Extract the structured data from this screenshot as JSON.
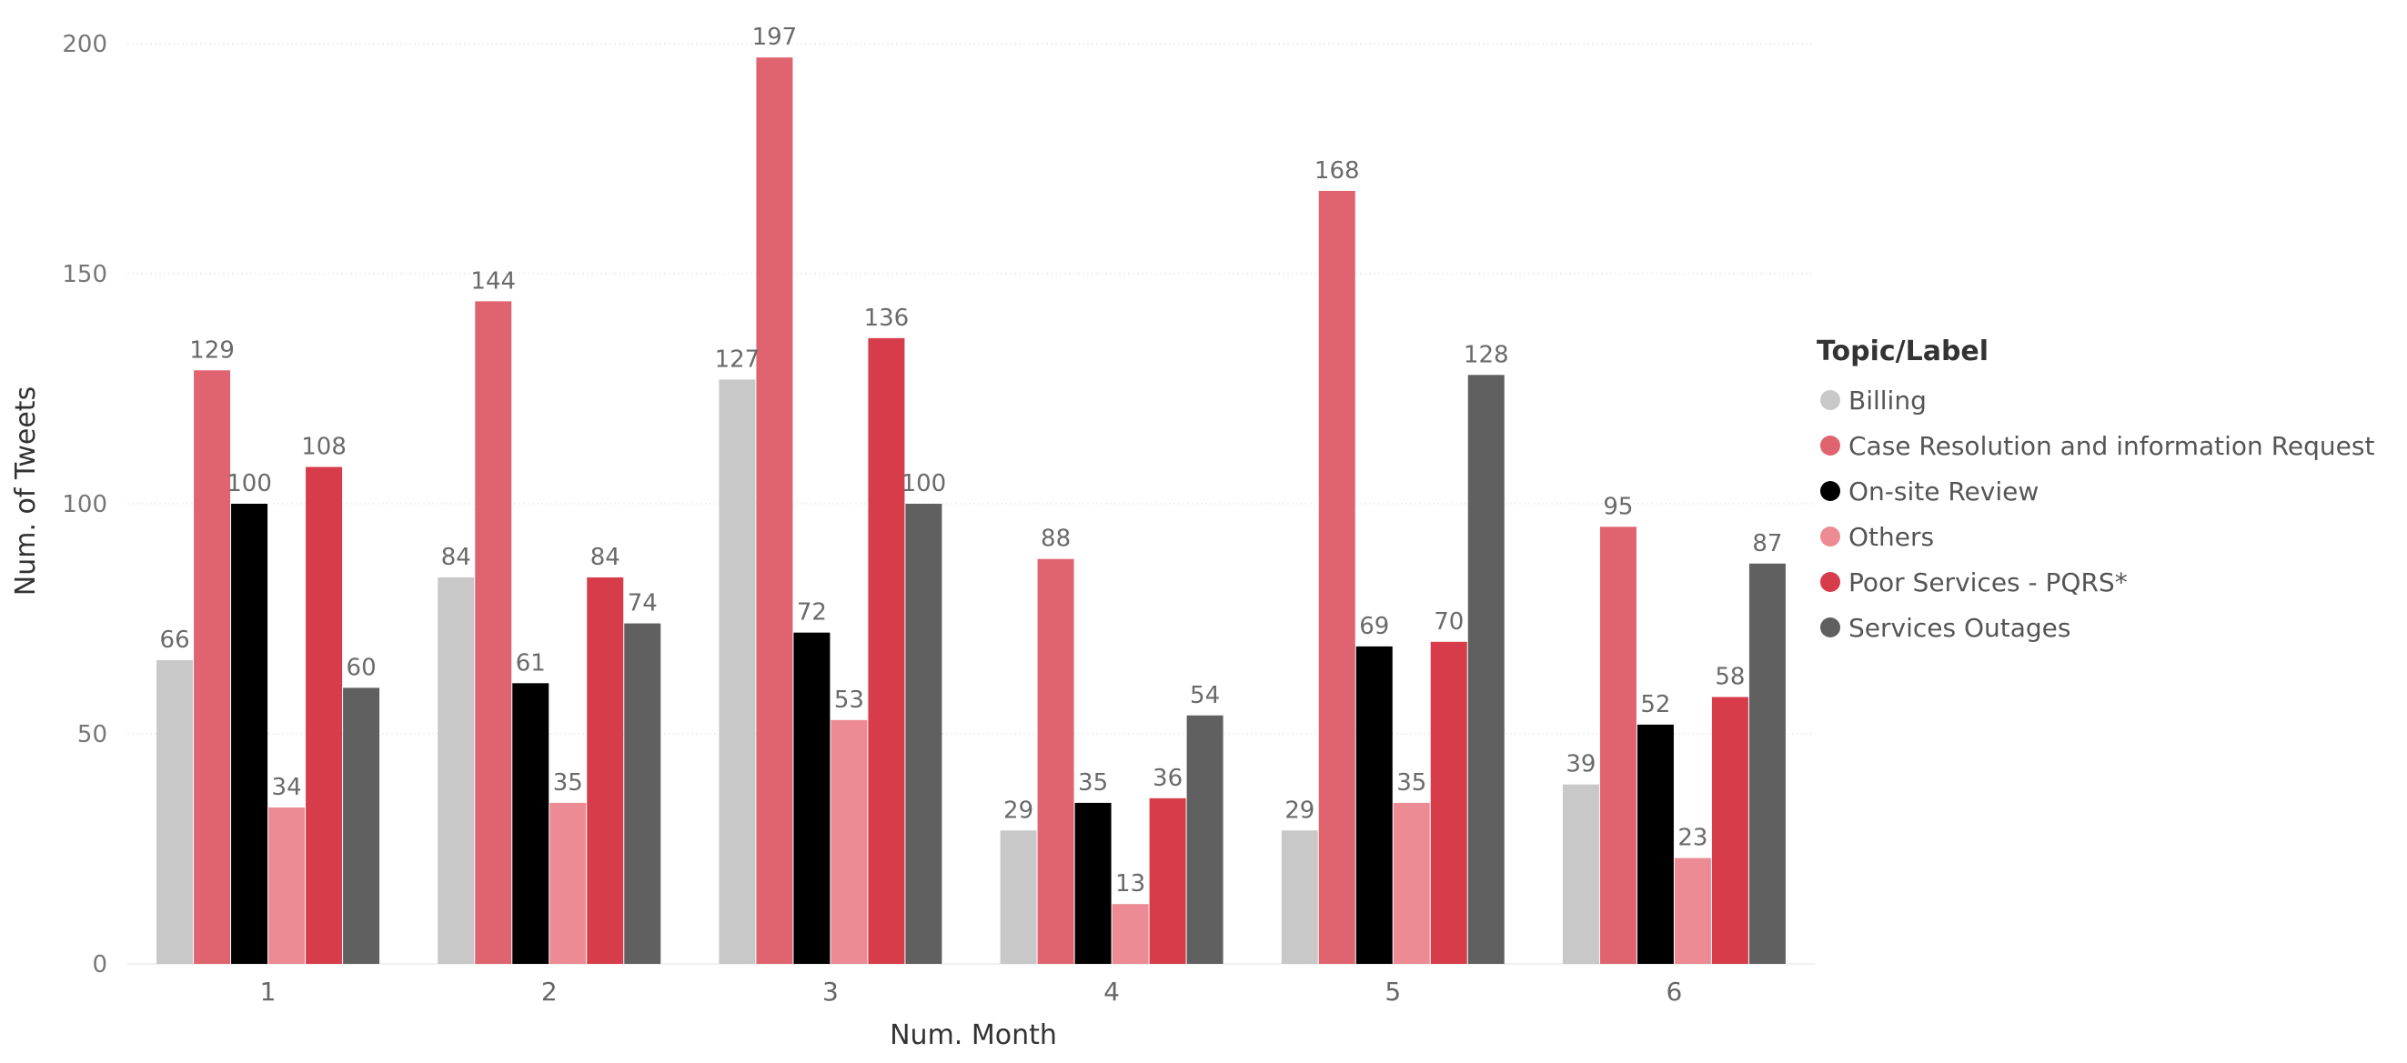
{
  "chart_data": {
    "type": "bar",
    "xlabel": "Num. Month",
    "ylabel": "Num. of Tweets",
    "ylim": [
      0,
      200
    ],
    "yticks": [
      0,
      50,
      100,
      150,
      200
    ],
    "grid": true,
    "legend_position": "right",
    "legend_title": "Topic/Label",
    "categories": [
      "1",
      "2",
      "3",
      "4",
      "5",
      "6"
    ],
    "series": [
      {
        "name": "Billing",
        "color": "#c8c8c8",
        "values": [
          66,
          84,
          127,
          29,
          29,
          39
        ]
      },
      {
        "name": "Case Resolution and information Request",
        "color": "#e06470",
        "values": [
          129,
          144,
          197,
          88,
          168,
          95
        ]
      },
      {
        "name": "On-site Review",
        "color": "#000000",
        "values": [
          100,
          61,
          72,
          35,
          69,
          52
        ]
      },
      {
        "name": "Others",
        "color": "#ec8b93",
        "values": [
          34,
          35,
          53,
          13,
          35,
          23
        ]
      },
      {
        "name": "Poor Services - PQRS*",
        "color": "#d63c4a",
        "values": [
          108,
          84,
          136,
          36,
          70,
          58
        ]
      },
      {
        "name": "Services Outages",
        "color": "#606060",
        "values": [
          60,
          74,
          100,
          54,
          128,
          87
        ]
      }
    ]
  }
}
